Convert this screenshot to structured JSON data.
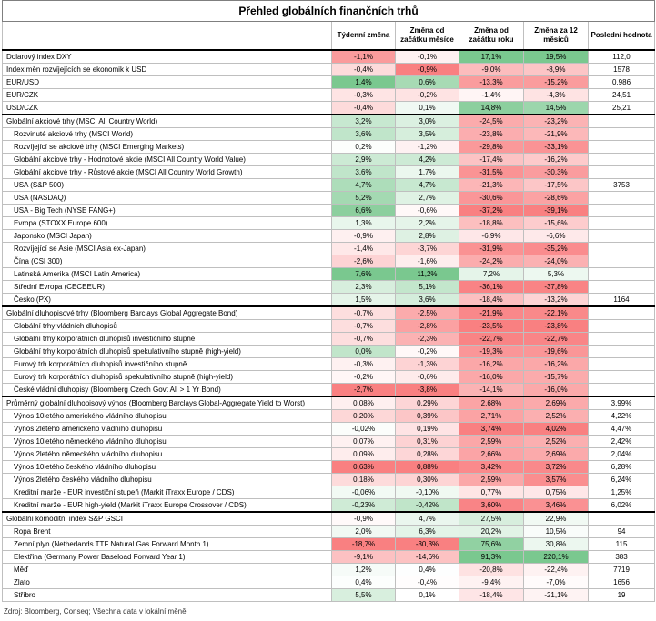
{
  "title": "Přehled globálních finančních trhů",
  "columns": [
    "",
    "Týdenní změna",
    "Změna od začátku měsíce",
    "Změna od začátku roku",
    "Změna za 12 měsíců",
    "Poslední hodnota"
  ],
  "source": "Zdroj: Bloomberg, Conseq; Všechna data v lokální měně",
  "colors": {
    "pos": "#63be7b",
    "neg": "#f8696b",
    "mid": "#ffffff",
    "grid": "#bfbfbf",
    "rule": "#000000"
  },
  "groups": [
    {
      "rows": [
        {
          "label": "Dolarový index DXY",
          "indent": false,
          "values": [
            "-1,1%",
            "-0,1%",
            "17,1%",
            "19,5%"
          ],
          "last": "112,0"
        },
        {
          "label": "Index měn rozvíjejících se ekonomik k USD",
          "indent": false,
          "values": [
            "-0,4%",
            "-0,9%",
            "-9,0%",
            "-8,9%"
          ],
          "last": "1578"
        },
        {
          "label": "EUR/USD",
          "indent": false,
          "values": [
            "1,4%",
            "0,6%",
            "-13,3%",
            "-15,2%"
          ],
          "last": "0,986"
        },
        {
          "label": "EUR/CZK",
          "indent": false,
          "values": [
            "-0,3%",
            "-0,2%",
            "-1,4%",
            "-4,3%"
          ],
          "last": "24,51"
        },
        {
          "label": "USD/CZK",
          "indent": false,
          "values": [
            "-0,4%",
            "0,1%",
            "14,8%",
            "14,5%"
          ],
          "last": "25,21"
        }
      ]
    },
    {
      "rows": [
        {
          "label": "Globální akciové trhy (MSCI All Country World)",
          "indent": false,
          "values": [
            "3,2%",
            "3,0%",
            "-24,5%",
            "-23,2%"
          ],
          "last": ""
        },
        {
          "label": "Rozvinuté akciové trhy (MSCI World)",
          "indent": true,
          "values": [
            "3,6%",
            "3,5%",
            "-23,8%",
            "-21,9%"
          ],
          "last": ""
        },
        {
          "label": "Rozvíjející se akciové trhy (MSCI Emerging Markets)",
          "indent": true,
          "values": [
            "0,2%",
            "-1,2%",
            "-29,8%",
            "-33,1%"
          ],
          "last": ""
        },
        {
          "label": "Globální akciové trhy - Hodnotové akcie (MSCI All Country World Value)",
          "indent": true,
          "values": [
            "2,9%",
            "4,2%",
            "-17,4%",
            "-16,2%"
          ],
          "last": ""
        },
        {
          "label": "Globální akciové trhy - Růstové akcie (MSCI All Country World Growth)",
          "indent": true,
          "values": [
            "3,6%",
            "1,7%",
            "-31,5%",
            "-30,3%"
          ],
          "last": ""
        },
        {
          "label": "USA (S&P 500)",
          "indent": true,
          "values": [
            "4,7%",
            "4,7%",
            "-21,3%",
            "-17,5%"
          ],
          "last": "3753"
        },
        {
          "label": "USA (NASDAQ)",
          "indent": true,
          "values": [
            "5,2%",
            "2,7%",
            "-30,6%",
            "-28,6%"
          ],
          "last": ""
        },
        {
          "label": "USA - Big Tech (NYSE FANG+)",
          "indent": true,
          "values": [
            "6,6%",
            "-0,6%",
            "-37,2%",
            "-39,1%"
          ],
          "last": ""
        },
        {
          "label": "Evropa (STOXX Europe 600)",
          "indent": true,
          "values": [
            "1,3%",
            "2,2%",
            "-18,8%",
            "-15,6%"
          ],
          "last": ""
        },
        {
          "label": "Japonsko (MSCI Japan)",
          "indent": true,
          "values": [
            "-0,9%",
            "2,8%",
            "-6,9%",
            "-6,6%"
          ],
          "last": ""
        },
        {
          "label": "Rozvíjející se Asie (MSCI Asia ex-Japan)",
          "indent": true,
          "values": [
            "-1,4%",
            "-3,7%",
            "-31,9%",
            "-35,2%"
          ],
          "last": ""
        },
        {
          "label": "Čína (CSI 300)",
          "indent": true,
          "values": [
            "-2,6%",
            "-1,6%",
            "-24,2%",
            "-24,0%"
          ],
          "last": ""
        },
        {
          "label": "Latinská Amerika (MSCI Latin America)",
          "indent": true,
          "values": [
            "7,6%",
            "11,2%",
            "7,2%",
            "5,3%"
          ],
          "last": ""
        },
        {
          "label": "Střední Evropa (CECEEUR)",
          "indent": true,
          "values": [
            "2,3%",
            "5,1%",
            "-36,1%",
            "-37,8%"
          ],
          "last": ""
        },
        {
          "label": "Česko (PX)",
          "indent": true,
          "values": [
            "1,5%",
            "3,6%",
            "-18,4%",
            "-13,2%"
          ],
          "last": "1164"
        }
      ]
    },
    {
      "rows": [
        {
          "label": "Globální dluhopisové trhy (Bloomberg Barclays Global Aggregate Bond)",
          "indent": false,
          "values": [
            "-0,7%",
            "-2,5%",
            "-21,9%",
            "-22,1%"
          ],
          "last": ""
        },
        {
          "label": "Globální trhy vládních dluhopisů",
          "indent": true,
          "values": [
            "-0,7%",
            "-2,8%",
            "-23,5%",
            "-23,8%"
          ],
          "last": ""
        },
        {
          "label": "Globální trhy korporátních dluhopisů investičního stupně",
          "indent": true,
          "values": [
            "-0,7%",
            "-2,3%",
            "-22,7%",
            "-22,7%"
          ],
          "last": ""
        },
        {
          "label": "Globální trhy korporátních dluhopisů spekulativního stupně (high-yield)",
          "indent": true,
          "values": [
            "0,0%",
            "-0,2%",
            "-19,3%",
            "-19,6%"
          ],
          "last": ""
        },
        {
          "label": "Eurový trh korporátních dluhopisů investičního stupně",
          "indent": true,
          "values": [
            "-0,3%",
            "-1,3%",
            "-16,2%",
            "-16,2%"
          ],
          "last": ""
        },
        {
          "label": "Eurový trh korporátních dluhopisů spekulativního stupně (high-yield)",
          "indent": true,
          "values": [
            "-0,2%",
            "-0,6%",
            "-16,0%",
            "-15,7%"
          ],
          "last": ""
        },
        {
          "label": "České vládní dluhopisy (Bloomberg Czech Govt All > 1 Yr Bond)",
          "indent": true,
          "values": [
            "-2,7%",
            "-3,8%",
            "-14,1%",
            "-16,0%"
          ],
          "last": ""
        }
      ]
    },
    {
      "rows": [
        {
          "label": "Průměrný globální dluhopisový výnos (Bloomberg Barclays Global-Aggregate Yield to Worst)",
          "indent": false,
          "values": [
            "0,08%",
            "0,29%",
            "2,68%",
            "2,69%"
          ],
          "last": "3,99%"
        },
        {
          "label": "Výnos 10letého amerického vládního dluhopisu",
          "indent": true,
          "values": [
            "0,20%",
            "0,39%",
            "2,71%",
            "2,52%"
          ],
          "last": "4,22%"
        },
        {
          "label": "Výnos 2letého amerického vládního dluhopisu",
          "indent": true,
          "values": [
            "-0,02%",
            "0,19%",
            "3,74%",
            "4,02%"
          ],
          "last": "4,47%"
        },
        {
          "label": "Výnos 10letého německého vládního dluhopisu",
          "indent": true,
          "values": [
            "0,07%",
            "0,31%",
            "2,59%",
            "2,52%"
          ],
          "last": "2,42%"
        },
        {
          "label": "Výnos 2letého německého vládního dluhopisu",
          "indent": true,
          "values": [
            "0,09%",
            "0,28%",
            "2,66%",
            "2,69%"
          ],
          "last": "2,04%"
        },
        {
          "label": "Výnos 10letého českého vládního dluhopisu",
          "indent": true,
          "values": [
            "0,63%",
            "0,88%",
            "3,42%",
            "3,72%"
          ],
          "last": "6,28%"
        },
        {
          "label": "Výnos 2letého českého vládního dluhopisu",
          "indent": true,
          "values": [
            "0,18%",
            "0,30%",
            "2,59%",
            "3,57%"
          ],
          "last": "6,24%"
        },
        {
          "label": "Kreditní marže - EUR investiční stupeň (Markit iTraxx Europe / CDS)",
          "indent": true,
          "values": [
            "-0,06%",
            "-0,10%",
            "0,77%",
            "0,75%"
          ],
          "last": "1,25%"
        },
        {
          "label": "Kreditní marže - EUR high-yield (Markit iTraxx Europe Crossover / CDS)",
          "indent": true,
          "values": [
            "-0,23%",
            "-0,42%",
            "3,60%",
            "3,46%"
          ],
          "last": "6,02%"
        }
      ]
    },
    {
      "rows": [
        {
          "label": "Globální komoditní index S&P GSCI",
          "indent": false,
          "values": [
            "-0,9%",
            "4,7%",
            "27,5%",
            "22,9%"
          ],
          "last": ""
        },
        {
          "label": "Ropa Brent",
          "indent": true,
          "values": [
            "2,0%",
            "6,3%",
            "20,2%",
            "10,5%"
          ],
          "last": "94"
        },
        {
          "label": "Zemní plyn (Netherlands TTF Natural Gas Forward Month 1)",
          "indent": true,
          "values": [
            "-18,7%",
            "-30,3%",
            "75,6%",
            "30,8%"
          ],
          "last": "115"
        },
        {
          "label": "Elektřina (Germany Power Baseload Forward Year 1)",
          "indent": true,
          "values": [
            "-9,1%",
            "-14,6%",
            "91,3%",
            "220,1%"
          ],
          "last": "383"
        },
        {
          "label": "Měď",
          "indent": true,
          "values": [
            "1,2%",
            "0,4%",
            "-20,8%",
            "-22,4%"
          ],
          "last": "7719"
        },
        {
          "label": "Zlato",
          "indent": true,
          "values": [
            "0,4%",
            "-0,4%",
            "-9,4%",
            "-7,0%"
          ],
          "last": "1656"
        },
        {
          "label": "Stříbro",
          "indent": true,
          "values": [
            "5,5%",
            "0,1%",
            "-18,4%",
            "-21,1%"
          ],
          "last": "19"
        }
      ]
    }
  ]
}
